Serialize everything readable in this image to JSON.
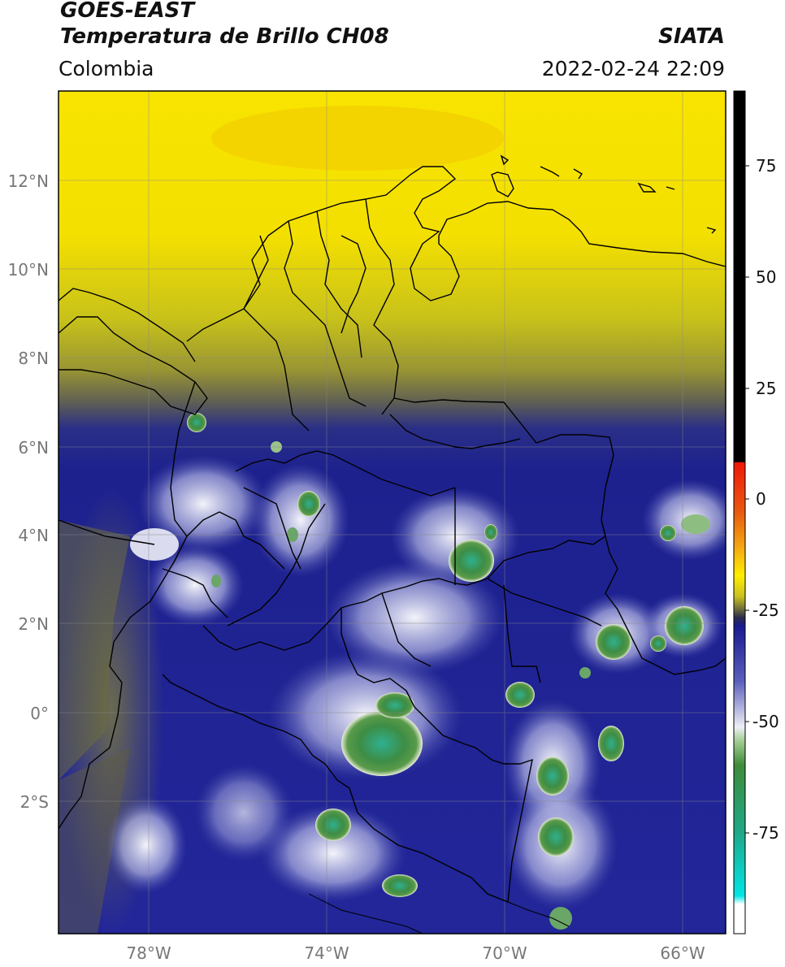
{
  "header": {
    "satellite": "GOES-EAST",
    "product": "Temperatura de Brillo CH08",
    "region": "Colombia",
    "source": "SIATA",
    "datetime": "2022-02-24 22:09"
  },
  "map": {
    "lat_labels": [
      "12°N",
      "10°N",
      "8°N",
      "6°N",
      "4°N",
      "2°N",
      "0°",
      "2°S"
    ],
    "lon_labels": [
      "78°W",
      "74°W",
      "70°W",
      "66°W"
    ]
  },
  "colorbar": {
    "tick_labels": [
      "75",
      "50",
      "25",
      "0",
      "-25",
      "-50",
      "-75"
    ],
    "colors": {
      "black": "#000000",
      "red": "#e8301a",
      "orange": "#f59a10",
      "yellow": "#ffee00",
      "olive": "#6d6d2e",
      "navy": "#1a1e8a",
      "white": "#ffffff",
      "green": "#3a8a2e",
      "cyan": "#00e0e0"
    }
  },
  "palette": {
    "warm_yellow": "#f7e400",
    "olive": "#8e8e32",
    "deep_blue": "#1c1f8e",
    "mid_blue": "#3a3fa6",
    "light_cloud": "#d9dbf0",
    "cold_green": "#3c8c44",
    "cold_teal": "#30b89a"
  }
}
